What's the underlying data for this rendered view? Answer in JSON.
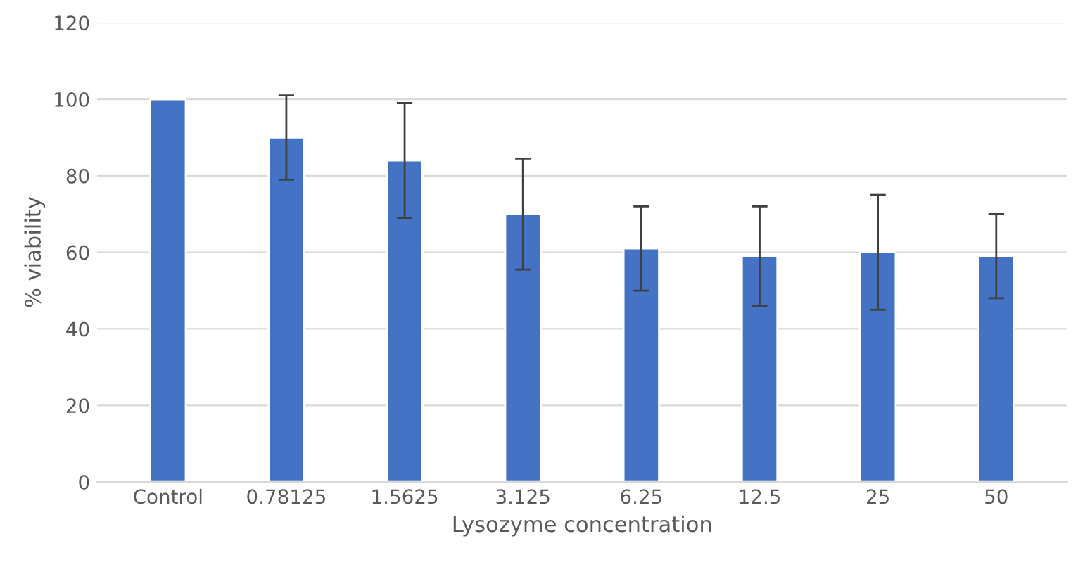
{
  "chart_data": {
    "type": "bar",
    "xlabel": "Lysozyme concentration",
    "ylabel": "% viability",
    "categories": [
      "Control",
      "0.78125",
      "1.5625",
      "3.125",
      "6.25",
      "12.5",
      "25",
      "50"
    ],
    "values": [
      100,
      90,
      84,
      70,
      61,
      59,
      60,
      59
    ],
    "errors": [
      null,
      11,
      15,
      14.5,
      11,
      13,
      15,
      11
    ],
    "color": "#4472c4",
    "ylim": [
      0,
      120
    ],
    "yticks": [
      0,
      20,
      40,
      60,
      80,
      100,
      120
    ],
    "grid": "y"
  }
}
